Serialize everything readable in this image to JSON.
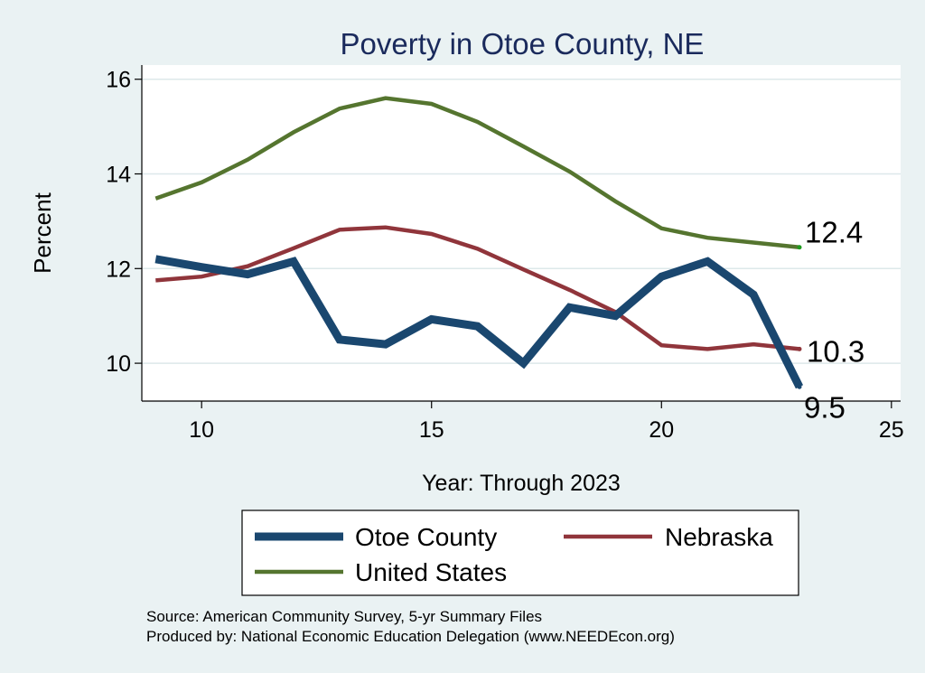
{
  "chart_data": {
    "type": "line",
    "title": "Poverty in Otoe County, NE",
    "xlabel": "Year: Through 2023",
    "ylabel": "Percent",
    "xlim": [
      8.7,
      25.2
    ],
    "ylim": [
      9.2,
      16.3
    ],
    "xticks": [
      10,
      15,
      20,
      25
    ],
    "yticks": [
      10,
      12,
      14,
      16
    ],
    "grid": true,
    "legend_position": "bottom",
    "series": [
      {
        "name": "Otoe County",
        "color": "#1a476f",
        "style": "thick",
        "x": [
          9,
          10,
          11,
          12,
          13,
          14,
          15,
          16,
          17,
          18,
          19,
          20,
          21,
          22,
          23
        ],
        "values": [
          12.2,
          12.03,
          11.88,
          12.15,
          10.5,
          10.4,
          10.93,
          10.78,
          10.0,
          11.18,
          11.0,
          11.83,
          12.15,
          11.45,
          9.5
        ],
        "end_label": "9.5"
      },
      {
        "name": "Nebraska",
        "color": "#90353b",
        "style": "medium",
        "x": [
          9,
          10,
          11,
          12,
          13,
          14,
          15,
          16,
          17,
          18,
          19,
          20,
          21,
          22,
          23
        ],
        "values": [
          11.75,
          11.83,
          12.05,
          12.43,
          12.82,
          12.87,
          12.73,
          12.42,
          11.98,
          11.55,
          11.08,
          10.38,
          10.3,
          10.4,
          10.3
        ],
        "end_label": "10.3"
      },
      {
        "name": "United States",
        "color": "#55752f",
        "style": "medium",
        "x": [
          9,
          10,
          11,
          12,
          13,
          14,
          15,
          16,
          17,
          18,
          19,
          20,
          21,
          22,
          23
        ],
        "values": [
          13.48,
          13.82,
          14.3,
          14.88,
          15.38,
          15.6,
          15.48,
          15.1,
          14.58,
          14.05,
          13.42,
          12.85,
          12.65,
          12.55,
          12.45
        ],
        "end_label": "12.4"
      }
    ]
  },
  "source": {
    "line1": "Source: American Community Survey, 5-yr Summary Files",
    "line2": "Produced by: National Economic Education Delegation (www.NEEDEcon.org)"
  }
}
